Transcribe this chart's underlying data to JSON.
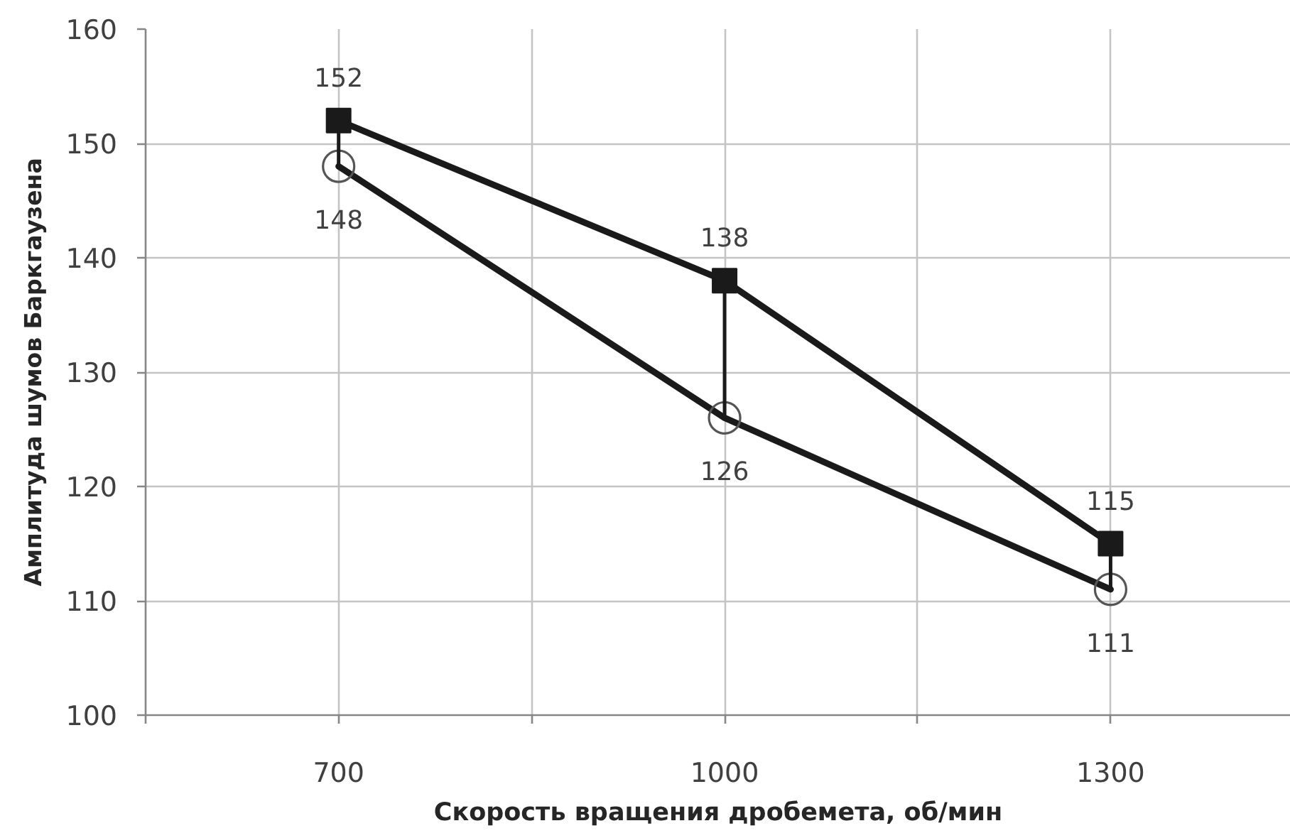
{
  "chart_data": {
    "type": "line",
    "xlabel": "Скорость вращения дробемета, об/мин",
    "ylabel": "Амплитуда шумов Баркгаузена",
    "x": [
      700,
      1000,
      1300
    ],
    "xlim": [
      550,
      1440
    ],
    "xticks": [
      {
        "value": 550,
        "label": null
      },
      700,
      {
        "value": 850,
        "label": null
      },
      1000,
      {
        "value": 1150,
        "label": null
      },
      1300
    ],
    "ylim": [
      100,
      160
    ],
    "yticks": [
      100,
      110,
      120,
      130,
      140,
      150,
      160
    ],
    "grid": true,
    "series": [
      {
        "color": "#1a1a1a",
        "marker": "square",
        "values": [
          152,
          138,
          115
        ],
        "value_labels": [
          "152",
          "138",
          "115"
        ]
      },
      {
        "color": "#1a1a1a",
        "marker": "circle",
        "values": [
          148,
          126,
          111
        ],
        "value_labels": [
          "148",
          "126",
          "111"
        ]
      },
      {
        "type": "line",
        "color": "#1a1a1a",
        "marker": "none",
        "x": [
          700,
          700
        ],
        "values": [
          148,
          152
        ]
      },
      {
        "type": "line",
        "color": "#1a1a1a",
        "marker": "none",
        "x": [
          1000,
          1000
        ],
        "values": [
          126,
          138
        ]
      },
      {
        "type": "line",
        "color": "#1a1a1a",
        "marker": "none",
        "x": [
          1300,
          1300
        ],
        "values": [
          111,
          115
        ]
      }
    ]
  }
}
